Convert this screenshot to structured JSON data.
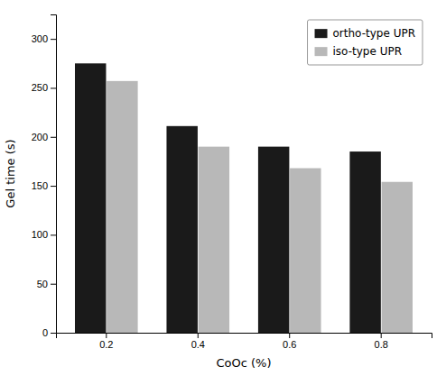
{
  "chart_data": {
    "type": "bar",
    "categories": [
      "0.2",
      "0.4",
      "0.6",
      "0.8"
    ],
    "series": [
      {
        "name": "ortho-type UPR",
        "color": "#1a1a1a",
        "values": [
          275,
          211,
          190,
          185
        ]
      },
      {
        "name": "iso-type UPR",
        "color": "#b8b8b8",
        "values": [
          257,
          190,
          168,
          154
        ]
      }
    ],
    "xlabel": "CoOc (%)",
    "ylabel": "Gel time (s)",
    "ylim": [
      0,
      325
    ],
    "yticks": [
      0,
      50,
      100,
      150,
      200,
      250,
      300
    ],
    "legend": "upper right",
    "grid": false
  }
}
